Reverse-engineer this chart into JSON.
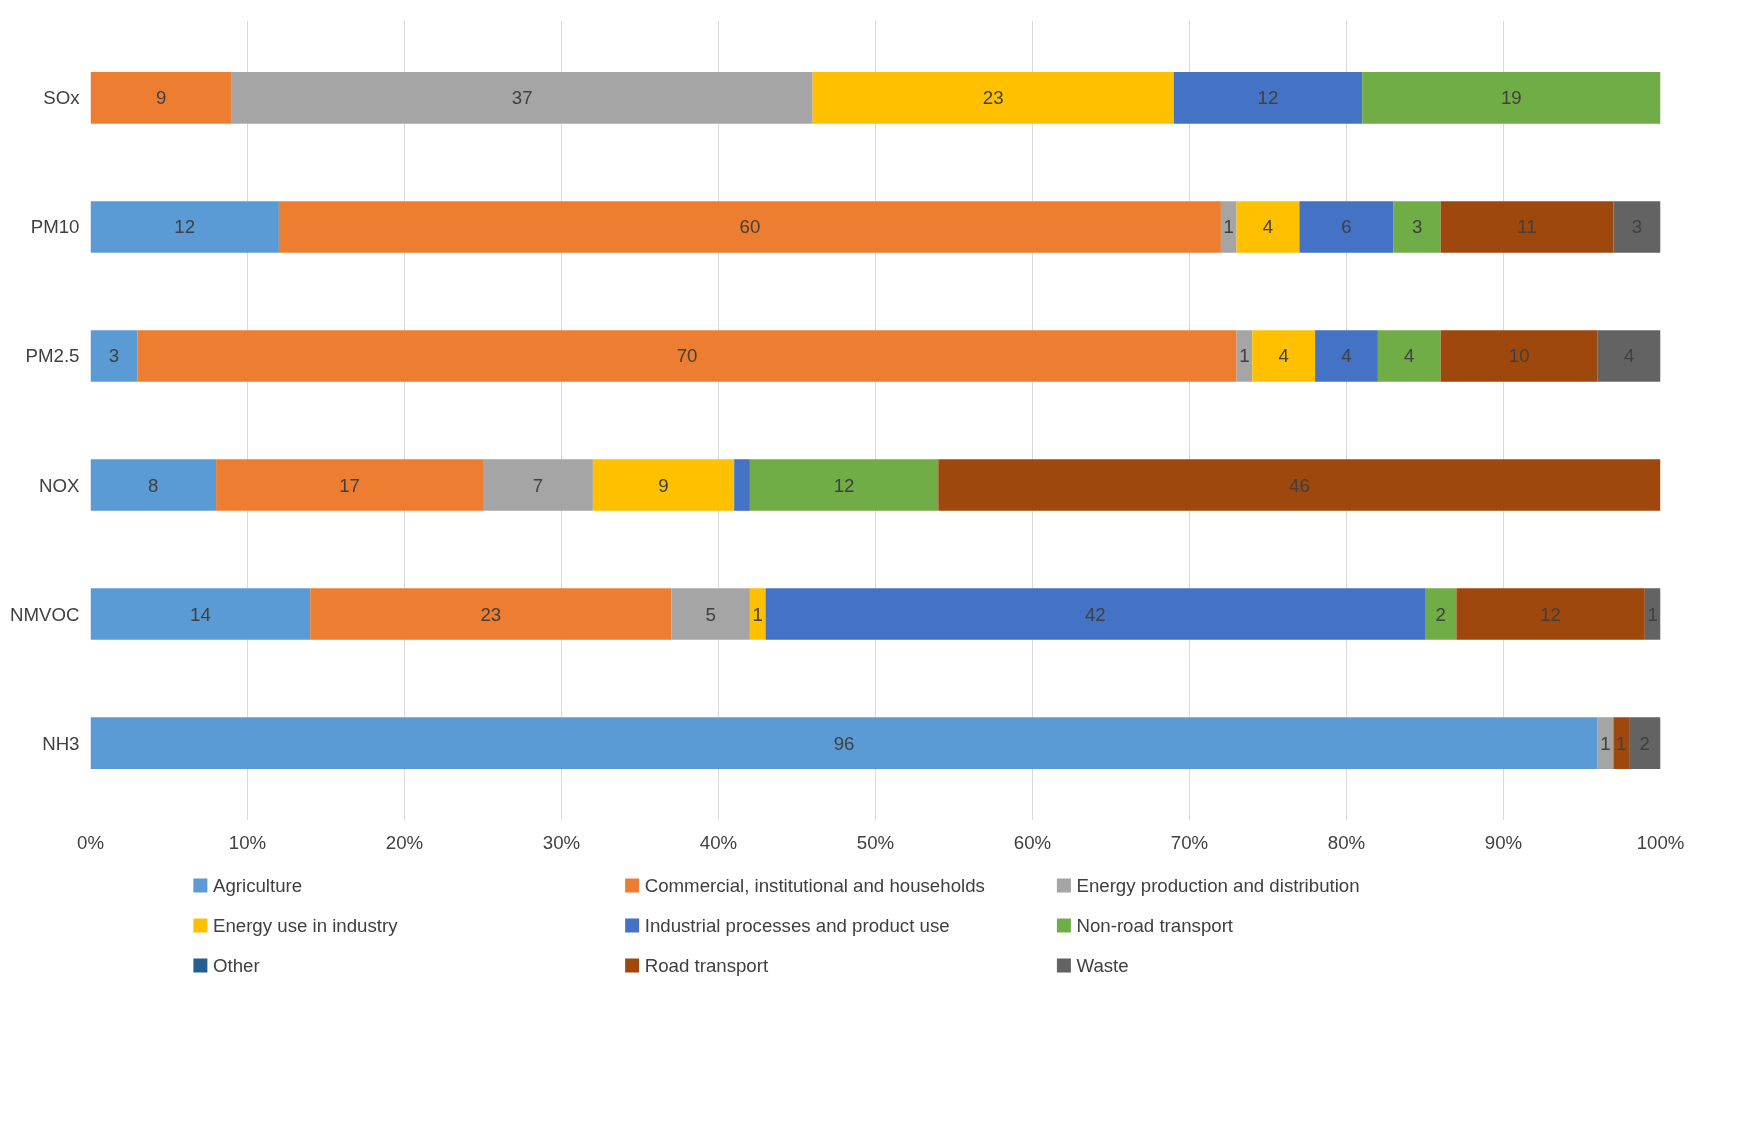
{
  "chart_data": {
    "type": "bar",
    "orientation": "horizontal",
    "stacked": true,
    "categories": [
      "SOx",
      "PM10",
      "PM2.5",
      "NOX",
      "NMVOC",
      "NH3"
    ],
    "series": [
      {
        "name": "Agriculture",
        "color": "#5b9bd5",
        "values": [
          0,
          12,
          3,
          8,
          14,
          96
        ],
        "value_labels": [
          null,
          "12",
          "3",
          "8",
          "14",
          "96"
        ]
      },
      {
        "name": "Commercial, institutional and households",
        "color": "#ed7d31",
        "values": [
          9,
          60,
          70,
          17,
          23,
          0
        ],
        "value_labels": [
          "9",
          "60",
          "70",
          "17",
          "23",
          null
        ]
      },
      {
        "name": "Energy production and distribution",
        "color": "#a5a5a5",
        "values": [
          37,
          1,
          1,
          7,
          5,
          1
        ],
        "value_labels": [
          "37",
          "1",
          "1",
          "7",
          "5",
          "1"
        ]
      },
      {
        "name": "Energy use in industry",
        "color": "#ffc000",
        "values": [
          23,
          4,
          4,
          9,
          1,
          0
        ],
        "value_labels": [
          "23",
          "4",
          "4",
          "9",
          "1",
          null
        ]
      },
      {
        "name": "Industrial processes and product use",
        "color": "#4472c4",
        "values": [
          12,
          6,
          4,
          1,
          42,
          0
        ],
        "value_labels": [
          "12",
          "6",
          "4",
          null,
          "42",
          null
        ]
      },
      {
        "name": "Non-road transport",
        "color": "#70ad47",
        "values": [
          19,
          3,
          4,
          12,
          2,
          0
        ],
        "value_labels": [
          "19",
          "3",
          "4",
          "12",
          "2",
          null
        ]
      },
      {
        "name": "Other",
        "color": "#255e91",
        "values": [
          0,
          0,
          0,
          0,
          0,
          0
        ],
        "value_labels": [
          null,
          null,
          null,
          null,
          null,
          null
        ]
      },
      {
        "name": "Road transport",
        "color": "#9e480e",
        "values": [
          0,
          11,
          10,
          46,
          12,
          1
        ],
        "value_labels": [
          null,
          "11",
          "10",
          "46",
          "12",
          "1"
        ]
      },
      {
        "name": "Waste",
        "color": "#636363",
        "values": [
          0,
          3,
          4,
          0,
          1,
          2
        ],
        "value_labels": [
          null,
          "3",
          "4",
          null,
          "1",
          "2"
        ]
      }
    ],
    "xlim": [
      0,
      100
    ],
    "xticks": [
      {
        "value": 0,
        "label": "0%"
      },
      {
        "value": 10,
        "label": "10%"
      },
      {
        "value": 20,
        "label": "20%"
      },
      {
        "value": 30,
        "label": "30%"
      },
      {
        "value": 40,
        "label": "40%"
      },
      {
        "value": 50,
        "label": "50%"
      },
      {
        "value": 60,
        "label": "60%"
      },
      {
        "value": 70,
        "label": "70%"
      },
      {
        "value": 80,
        "label": "80%"
      },
      {
        "value": 90,
        "label": "90%"
      },
      {
        "value": 100,
        "label": "100%"
      }
    ],
    "grid": "x",
    "legend": "bottom"
  }
}
